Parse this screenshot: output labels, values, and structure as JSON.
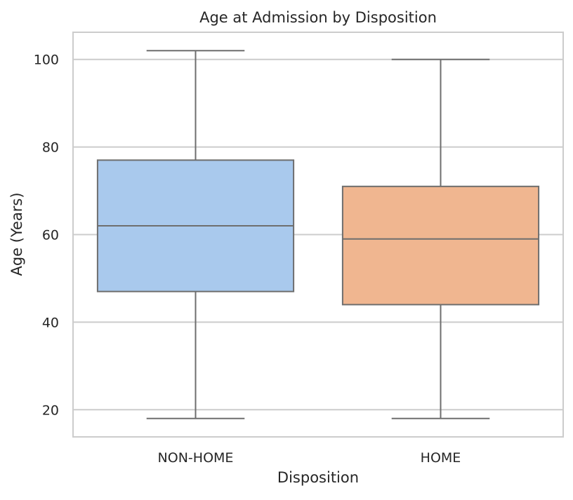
{
  "chart_data": {
    "type": "box",
    "title": "Age at Admission by Disposition",
    "xlabel": "Disposition",
    "ylabel": "Age (Years)",
    "categories": [
      "NON-HOME",
      "HOME"
    ],
    "boxes": [
      {
        "category": "NON-HOME",
        "whisker_low": 18,
        "q1": 47,
        "median": 62,
        "q3": 77,
        "whisker_high": 102,
        "color": "#a9c9ed"
      },
      {
        "category": "HOME",
        "whisker_low": 18,
        "q1": 44,
        "median": 59,
        "q3": 71,
        "whisker_high": 100,
        "color": "#f0b690"
      }
    ],
    "yticks": [
      20,
      40,
      60,
      80,
      100
    ],
    "ylim": [
      13.8,
      106.2
    ],
    "grid": true,
    "legend": "none",
    "colors": {
      "edge": "#6e6e6e",
      "grid": "#cccccc",
      "frame": "#cccccc"
    }
  }
}
